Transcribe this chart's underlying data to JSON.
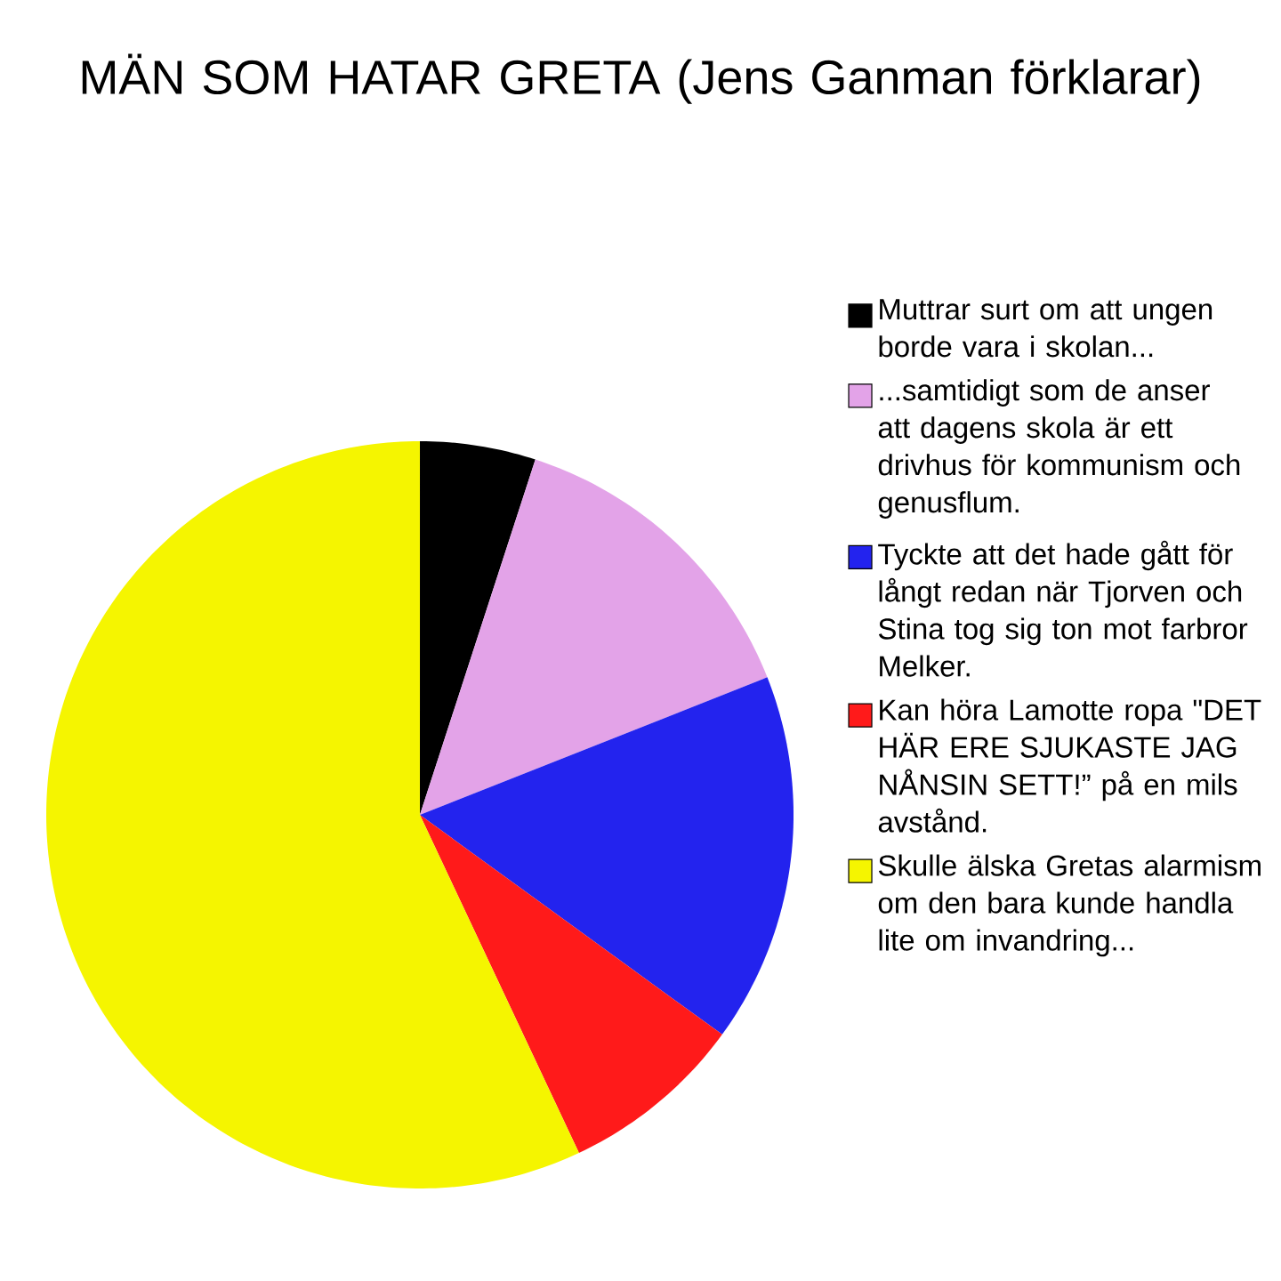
{
  "chart_data": {
    "type": "pie",
    "title": "MÄN SOM HATAR GRETA (Jens Ganman förklarar)",
    "categories": [
      "Muttrar surt om att ungen borde vara i skolan...",
      "...samtidigt som de anser att dagens skola är ett drivhus för kommunism och genusflum.",
      "Tyckte att det hade gått för långt redan när Tjorven och Stina tog sig ton mot farbror Melker.",
      "Kan höra Lamotte ropa \"DET HÄR ERE SJUKASTE JAG NÅNSIN SETT!” på en mils avstånd.",
      "Skulle älska Gretas alarmism om den bara kunde handla lite om invandring..."
    ],
    "values": [
      5,
      14,
      16,
      8,
      57
    ],
    "colors": [
      "#000000",
      "#e3a3e8",
      "#2323ee",
      "#ff1a1a",
      "#f5f500"
    ],
    "legend": "right"
  }
}
